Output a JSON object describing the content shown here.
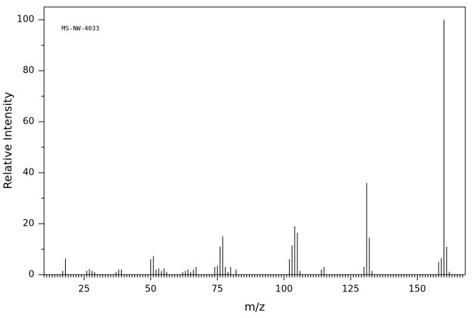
{
  "chart_data": {
    "type": "stem",
    "annotation": "MS-NW-4033",
    "x_label": "m/z",
    "y_label": "Relative Intensity",
    "x": [
      17,
      18,
      26,
      27,
      28,
      29,
      37,
      38,
      39,
      50,
      51,
      52,
      53,
      54,
      55,
      56,
      62,
      63,
      64,
      65,
      66,
      67,
      74,
      75,
      76,
      77,
      78,
      79,
      80,
      82,
      102,
      103,
      104,
      105,
      106,
      114,
      115,
      130,
      131,
      132,
      133,
      158,
      159,
      160,
      161,
      162
    ],
    "values": [
      1.5,
      6.3,
      1.5,
      2.2,
      1.5,
      1,
      1,
      2,
      2,
      6,
      7.2,
      2,
      2.5,
      1.5,
      2.5,
      1,
      1,
      1.5,
      2,
      1,
      2,
      3,
      3,
      3.5,
      11,
      15,
      3,
      1,
      3,
      2,
      6,
      11.5,
      19,
      16.5,
      1.5,
      2,
      3,
      3,
      36,
      14.5,
      1.5,
      5,
      6.5,
      100,
      11,
      1.2
    ],
    "color": "#000000",
    "xlim": [
      10,
      168
    ],
    "ylim": [
      0,
      105
    ],
    "xticks": [
      25,
      50,
      75,
      100,
      125,
      150
    ],
    "yticks": [
      0,
      20,
      40,
      60,
      80,
      100
    ]
  }
}
